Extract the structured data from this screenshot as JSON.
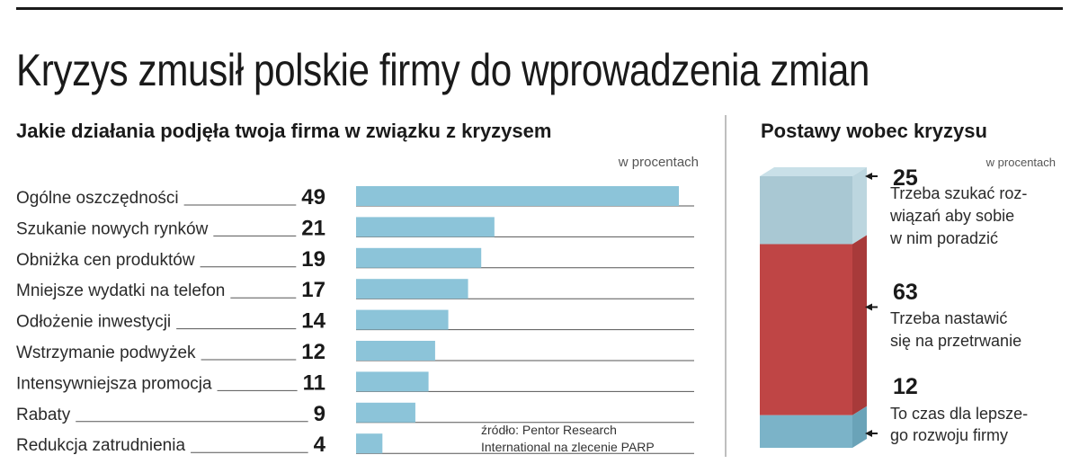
{
  "title": "Kryzys zmusił polskie firmy do wprowadzenia zmian",
  "chart_data": [
    {
      "type": "bar",
      "orientation": "horizontal",
      "title": "Jakie działania podjęła twoja firma w związku z kryzysem",
      "unit_label": "w procentach",
      "categories": [
        "Ogólne oszczędności",
        "Szukanie nowych rynków",
        "Obniżka cen produktów",
        "Mniejsze wydatki na telefon",
        "Odłożenie inwestycji",
        "Wstrzymanie podwyżek",
        "Intensywniejsza promocja",
        "Rabaty",
        "Redukcja zatrudnienia"
      ],
      "values": [
        49,
        21,
        19,
        17,
        14,
        12,
        11,
        9,
        4
      ],
      "xlim": [
        0,
        49
      ],
      "grid": false,
      "legend": "none",
      "color": "#8cc4d9",
      "source": [
        "źródło: Pentor Research",
        "International na zlecenie PARP"
      ]
    },
    {
      "type": "stacked-column",
      "title": "Postawy wobec kryzysu",
      "unit_label": "w procentach",
      "segments": [
        {
          "value": 25,
          "label_lines": [
            "Trzeba szukać roz-",
            "wiązań aby sobie",
            "w nim poradzić"
          ],
          "color": "#a9c8d3"
        },
        {
          "value": 63,
          "label_lines": [
            "Trzeba nastawić",
            "się na przetrwanie"
          ],
          "color": "#bf4545"
        },
        {
          "value": 12,
          "label_lines": [
            "To czas dla lepsze-",
            "go rozwoju firmy"
          ],
          "color": "#7bb3c8"
        }
      ],
      "ylim": [
        0,
        100
      ]
    }
  ]
}
